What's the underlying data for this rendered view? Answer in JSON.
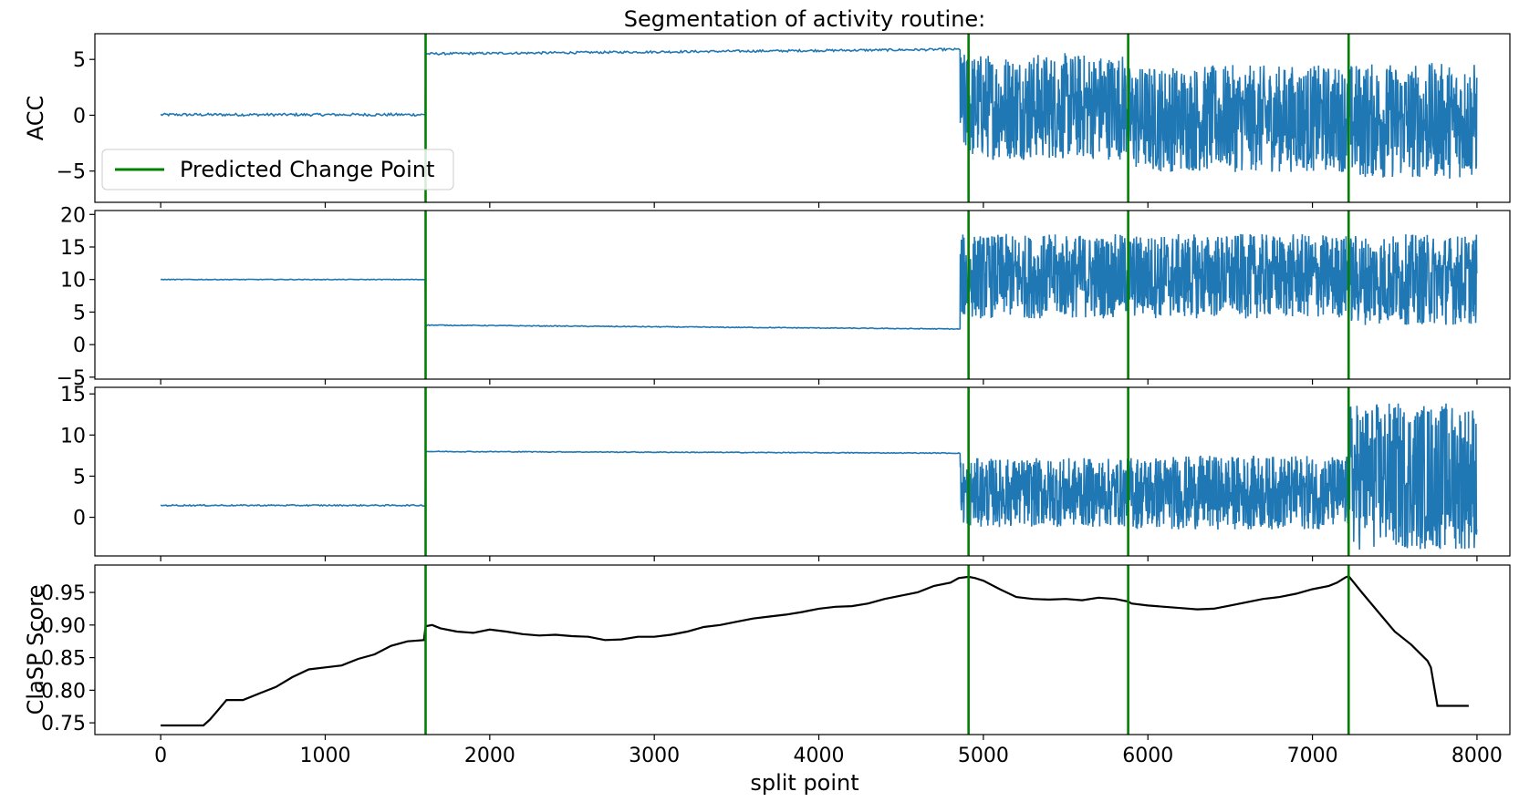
{
  "chart_data": {
    "type": "line",
    "title": "Segmentation of activity routine:",
    "xlabel": "split point",
    "xlim": [
      -400,
      8200
    ],
    "x_ticks": [
      0,
      1000,
      2000,
      3000,
      4000,
      5000,
      6000,
      7000,
      8000
    ],
    "change_points": [
      1610,
      4910,
      5880,
      7220
    ],
    "legend": {
      "label": "Predicted Change Point",
      "color": "#008000",
      "placement": "upper-left"
    },
    "series_color": "#1f77b4",
    "panels": [
      {
        "ylabel": "ACC",
        "ylim": [
          -7.8,
          7.3
        ],
        "y_ticks": [
          5,
          0,
          -5
        ],
        "y_tick_labels": [
          "5",
          "0",
          "−5"
        ],
        "segments": [
          {
            "x": [
              0,
              1610
            ],
            "mean": 0.05,
            "noise": 0.12
          },
          {
            "x": [
              1610,
              4860
            ],
            "mean_start": 5.5,
            "mean_end": 5.9,
            "noise": 0.1
          },
          {
            "x": [
              4860,
              5880
            ],
            "mean": 0.8,
            "noise": 4.8
          },
          {
            "x": [
              5880,
              7220
            ],
            "mean": -0.3,
            "noise": 4.8
          },
          {
            "x": [
              7220,
              8000
            ],
            "mean": -0.5,
            "noise": 5.2
          }
        ]
      },
      {
        "ylabel": "",
        "ylim": [
          -5.3,
          20.6
        ],
        "y_ticks": [
          20,
          15,
          10,
          5,
          0,
          -5
        ],
        "y_tick_labels": [
          "20",
          "15",
          "10",
          "5",
          "0",
          "−5"
        ],
        "segments": [
          {
            "x": [
              0,
              1610
            ],
            "mean": 10.0,
            "noise": 0.05
          },
          {
            "x": [
              1610,
              4860
            ],
            "mean_start": 3.0,
            "mean_end": 2.4,
            "noise": 0.06
          },
          {
            "x": [
              4860,
              5880
            ],
            "mean": 10.5,
            "noise": 6.5
          },
          {
            "x": [
              5880,
              7220
            ],
            "mean": 10.5,
            "noise": 6.5
          },
          {
            "x": [
              7220,
              8000
            ],
            "mean": 10.0,
            "noise": 7.0
          }
        ]
      },
      {
        "ylabel": "",
        "ylim": [
          -4.7,
          15.8
        ],
        "y_ticks": [
          15,
          10,
          5,
          0
        ],
        "y_tick_labels": [
          "15",
          "10",
          "5",
          "0"
        ],
        "segments": [
          {
            "x": [
              0,
              1610
            ],
            "mean": 1.45,
            "noise": 0.08
          },
          {
            "x": [
              1610,
              4860
            ],
            "mean_start": 8.0,
            "mean_end": 7.8,
            "noise": 0.05
          },
          {
            "x": [
              4860,
              5880
            ],
            "mean": 3.0,
            "noise": 4.2
          },
          {
            "x": [
              5880,
              7220
            ],
            "mean": 3.0,
            "noise": 4.5
          },
          {
            "x": [
              7220,
              8000
            ],
            "mean": 5.0,
            "noise": 9.0
          }
        ]
      },
      {
        "ylabel": "ClaSP Score",
        "ylim": [
          0.732,
          0.992
        ],
        "y_ticks": [
          0.95,
          0.9,
          0.85,
          0.8,
          0.75
        ],
        "y_tick_labels": [
          "0.95",
          "0.90",
          "0.85",
          "0.80",
          "0.75"
        ],
        "line_color": "#000000",
        "score": {
          "x": [
            0,
            260,
            300,
            350,
            400,
            500,
            600,
            700,
            800,
            900,
            1000,
            1100,
            1200,
            1300,
            1400,
            1500,
            1600,
            1610,
            1650,
            1700,
            1800,
            1900,
            2000,
            2100,
            2200,
            2300,
            2400,
            2500,
            2600,
            2700,
            2800,
            2900,
            3000,
            3100,
            3200,
            3300,
            3400,
            3500,
            3600,
            3700,
            3800,
            3900,
            4000,
            4100,
            4200,
            4300,
            4400,
            4500,
            4600,
            4700,
            4800,
            4850,
            4910,
            4950,
            5000,
            5100,
            5200,
            5300,
            5400,
            5500,
            5600,
            5700,
            5800,
            5880,
            5900,
            6000,
            6100,
            6200,
            6300,
            6400,
            6500,
            6600,
            6700,
            6800,
            6900,
            7000,
            7100,
            7150,
            7200,
            7220,
            7300,
            7400,
            7500,
            7600,
            7700,
            7720,
            7760,
            7950
          ],
          "y": [
            0.746,
            0.746,
            0.755,
            0.77,
            0.785,
            0.785,
            0.795,
            0.805,
            0.82,
            0.832,
            0.835,
            0.838,
            0.848,
            0.855,
            0.868,
            0.875,
            0.877,
            0.898,
            0.9,
            0.895,
            0.89,
            0.888,
            0.893,
            0.89,
            0.886,
            0.884,
            0.885,
            0.883,
            0.882,
            0.877,
            0.878,
            0.882,
            0.882,
            0.885,
            0.89,
            0.897,
            0.9,
            0.905,
            0.91,
            0.913,
            0.916,
            0.92,
            0.925,
            0.928,
            0.929,
            0.933,
            0.94,
            0.945,
            0.95,
            0.96,
            0.965,
            0.972,
            0.974,
            0.972,
            0.968,
            0.955,
            0.943,
            0.94,
            0.939,
            0.94,
            0.938,
            0.942,
            0.94,
            0.936,
            0.933,
            0.93,
            0.928,
            0.926,
            0.924,
            0.925,
            0.93,
            0.935,
            0.94,
            0.943,
            0.948,
            0.955,
            0.96,
            0.965,
            0.973,
            0.975,
            0.95,
            0.92,
            0.89,
            0.87,
            0.845,
            0.835,
            0.776,
            0.776
          ]
        }
      }
    ]
  }
}
